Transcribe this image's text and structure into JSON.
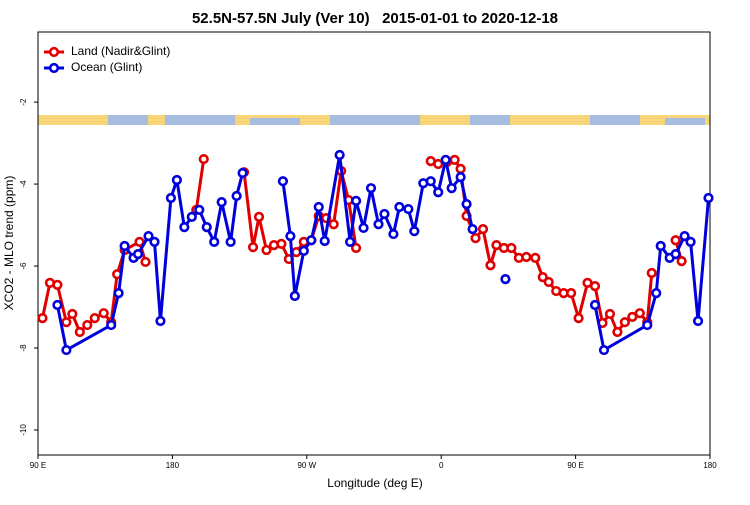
{
  "chart_data": {
    "type": "line",
    "title": "52.5N-57.5N July (Ver 10)   2015-01-01 to 2020-12-18",
    "x_label": "Longitude (deg E)",
    "y_label": "XCO2 - MLO trend (ppm)",
    "xlim": [
      90,
      540
    ],
    "xticks": [
      {
        "value": 90,
        "label": "90 E"
      },
      {
        "value": 180,
        "label": "180"
      },
      {
        "value": 270,
        "label": "90 W"
      },
      {
        "value": 360,
        "label": "0"
      },
      {
        "value": 450,
        "label": "90 E"
      },
      {
        "value": 540,
        "label": "180"
      }
    ],
    "ylim": [
      -10.61,
      -0.29
    ],
    "yticks": [
      -2,
      -4,
      -6,
      -8,
      -10
    ],
    "grid": false,
    "legend": "top-left",
    "series": [
      {
        "name": "Land (Nadir&Glint)",
        "color": "#e00000",
        "x": [
          93,
          98,
          103,
          109,
          113,
          118,
          123,
          128,
          134,
          139,
          143,
          148,
          158,
          162,
          null,
          196,
          201,
          null,
          228,
          234,
          238,
          243,
          248,
          253,
          258,
          263,
          268,
          273,
          278,
          283,
          288,
          293,
          298,
          303,
          null,
          353,
          358,
          364,
          369,
          373,
          377,
          383,
          388,
          393,
          397,
          402,
          407,
          412,
          417,
          423,
          428,
          432,
          437,
          442,
          447,
          452,
          458,
          463,
          468,
          473,
          478,
          483,
          488,
          493,
          498,
          501,
          null,
          517,
          521
        ],
        "values": [
          -7.27,
          -6.41,
          -6.46,
          -7.37,
          -7.17,
          -7.61,
          -7.44,
          -7.27,
          -7.15,
          -7.37,
          -6.2,
          -5.61,
          -5.41,
          -5.9,
          null,
          -4.63,
          -3.39,
          null,
          -3.71,
          -5.54,
          -4.8,
          -5.61,
          -5.49,
          -5.46,
          -5.83,
          -5.66,
          -5.41,
          -5.37,
          -4.78,
          -4.83,
          -4.98,
          -3.68,
          -4.39,
          -5.56,
          null,
          -3.44,
          -3.51,
          -3.46,
          -3.41,
          -3.63,
          -4.78,
          -5.32,
          -5.1,
          -5.98,
          -5.49,
          -5.56,
          -5.56,
          -5.8,
          -5.78,
          -5.8,
          -6.27,
          -6.39,
          -6.61,
          -6.66,
          -6.66,
          -7.27,
          -6.41,
          -6.49,
          -7.39,
          -7.17,
          -7.61,
          -7.37,
          -7.24,
          -7.15,
          -7.37,
          -6.17,
          null,
          -5.37,
          -5.88
        ]
      },
      {
        "name": "Ocean (Glint)",
        "color": "#0000dd",
        "x": [
          103,
          109,
          139,
          144,
          148,
          154,
          157,
          164,
          168,
          172,
          179,
          183,
          188,
          193,
          198,
          203,
          208,
          213,
          219,
          223,
          227,
          null,
          254,
          259,
          262,
          268,
          273,
          278,
          282,
          292,
          299,
          303,
          308,
          313,
          318,
          322,
          328,
          332,
          338,
          342,
          348,
          353,
          358,
          363,
          367,
          373,
          377,
          381,
          null,
          403,
          null,
          463,
          469,
          498,
          504,
          507,
          513,
          517,
          523,
          527,
          532,
          539
        ],
        "values": [
          -6.95,
          -8.05,
          -7.44,
          -6.66,
          -5.51,
          -5.8,
          -5.71,
          -5.27,
          -5.41,
          -7.34,
          -4.34,
          -3.9,
          -5.05,
          -4.8,
          -4.63,
          -5.05,
          -5.41,
          -4.44,
          -5.41,
          -4.29,
          -3.73,
          null,
          -3.93,
          -5.27,
          -6.73,
          -5.63,
          -5.37,
          -4.56,
          -5.39,
          -3.29,
          -5.41,
          -4.41,
          -5.07,
          -4.1,
          -4.98,
          -4.73,
          -5.22,
          -4.56,
          -4.61,
          -5.15,
          -3.98,
          -3.93,
          -4.2,
          -3.41,
          -4.1,
          -3.83,
          -4.49,
          -5.1,
          null,
          -6.32,
          null,
          -6.95,
          -8.05,
          -7.44,
          -6.66,
          -5.51,
          -5.8,
          -5.71,
          -5.27,
          -5.41,
          -7.34,
          -4.34
        ]
      }
    ]
  }
}
